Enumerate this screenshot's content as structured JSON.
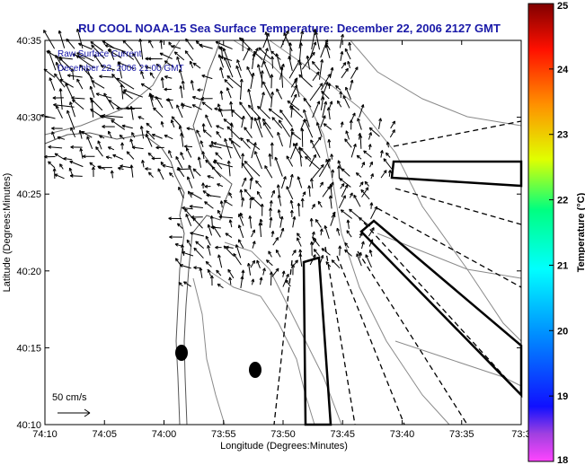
{
  "chart_data": {
    "type": "quiver",
    "title": "RU COOL  NOAA-15  Sea Surface Temperature:  December 22, 2006 2127 GMT",
    "annotation": {
      "line1": "Raw Surface Current",
      "line2": "December 22, 2006 21:00 GMT"
    },
    "xlabel": "Longitude (Degrees:Minutes)",
    "ylabel": "Latitude (Degrees:Minutes)",
    "x_ticks": [
      "74:10",
      "74:05",
      "74:00",
      "73:55",
      "73:50",
      "73:45",
      "73:40",
      "73:35",
      "73:3"
    ],
    "y_ticks": [
      "40:35",
      "40:30",
      "40:25",
      "40:20",
      "40:15",
      "40:10"
    ],
    "xlim_minutes_west": [
      10,
      30
    ],
    "ylim_minutes_north": [
      10,
      35
    ],
    "scale_vector_label": "50 cm/s",
    "colorbar": {
      "label": "Temperature (°C)",
      "range": [
        18,
        25
      ],
      "ticks": [
        "25",
        "24",
        "23",
        "22",
        "21",
        "20",
        "19",
        "18"
      ],
      "colormap": "jet"
    },
    "grid": false
  }
}
